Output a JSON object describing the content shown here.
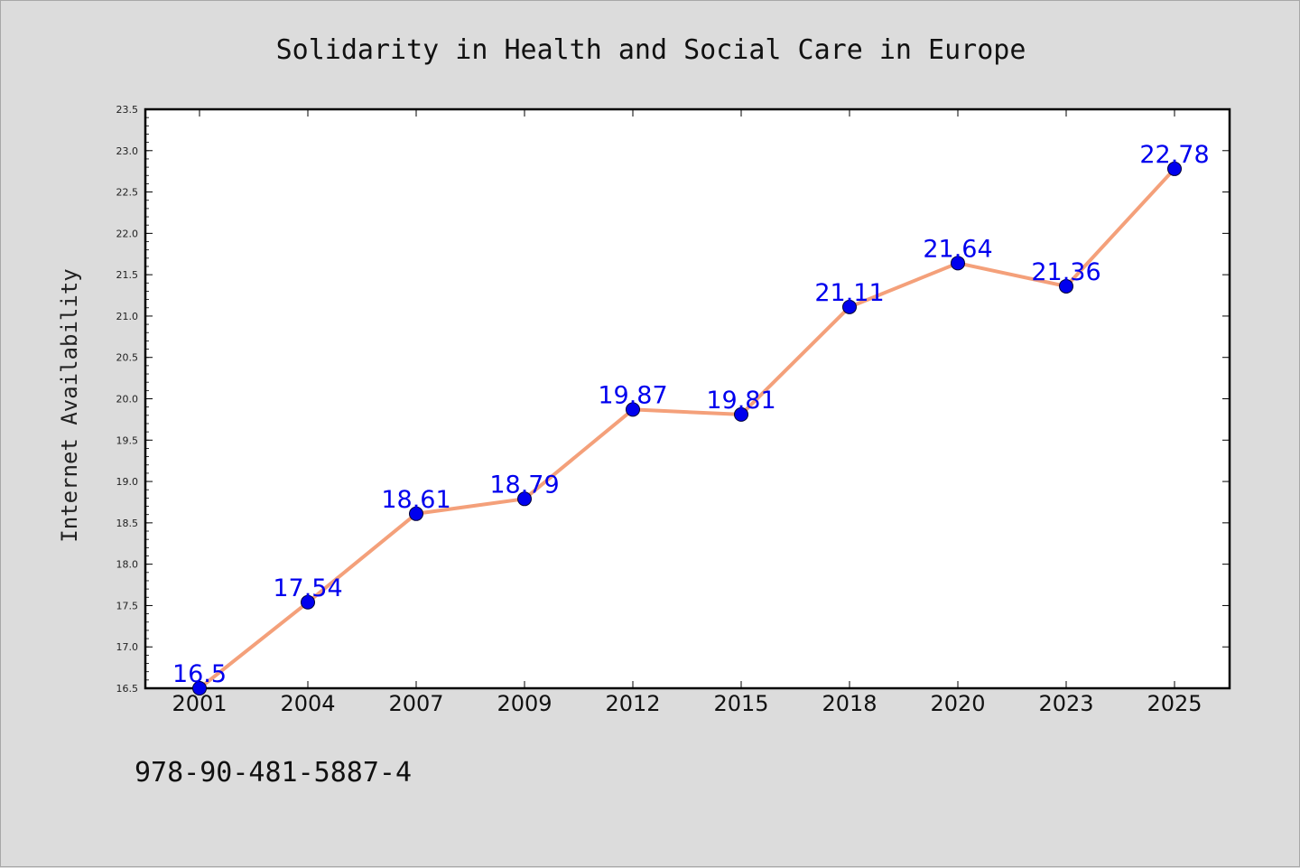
{
  "chart_data": {
    "type": "line",
    "title": "Solidarity in Health and Social Care in Europe",
    "xlabel": "",
    "ylabel": "Internet Availability",
    "categories": [
      "2001",
      "2004",
      "2007",
      "2009",
      "2012",
      "2015",
      "2018",
      "2020",
      "2023",
      "2025"
    ],
    "series": [
      {
        "values": [
          16.5,
          17.54,
          18.61,
          18.79,
          19.87,
          19.81,
          21.11,
          21.64,
          21.36,
          22.78
        ],
        "labels": [
          "16.5",
          "17.54",
          "18.61",
          "18.79",
          "19.87",
          "19.81",
          "21.11",
          "21.64",
          "21.36",
          "22.78"
        ],
        "line_color": "#f4a07a",
        "marker_color": "#0000ee"
      }
    ],
    "ylim": [
      16.5,
      23.5
    ],
    "yticks": [
      "16.5",
      "17.0",
      "17.5",
      "18.0",
      "18.5",
      "19.0",
      "19.5",
      "20.0",
      "20.5",
      "21.0",
      "21.5",
      "22.0",
      "22.5",
      "23.0",
      "23.5"
    ],
    "grid": false,
    "legend": "none"
  },
  "annotation": "978-90-481-5887-4"
}
